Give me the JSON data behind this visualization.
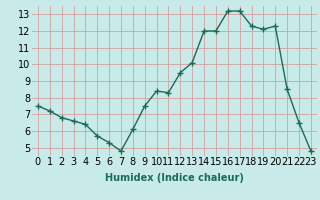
{
  "x": [
    0,
    1,
    2,
    3,
    4,
    5,
    6,
    7,
    8,
    9,
    10,
    11,
    12,
    13,
    14,
    15,
    16,
    17,
    18,
    19,
    20,
    21,
    22,
    23
  ],
  "y": [
    7.5,
    7.2,
    6.8,
    6.6,
    6.4,
    5.7,
    5.3,
    4.8,
    6.1,
    7.5,
    8.4,
    8.3,
    9.5,
    10.1,
    12.0,
    12.0,
    13.2,
    13.2,
    12.3,
    12.1,
    12.3,
    8.5,
    6.5,
    4.8
  ],
  "line_color": "#1a6b5a",
  "marker": "+",
  "marker_size": 4,
  "marker_linewidth": 1.0,
  "bg_color": "#c8eae8",
  "grid_color": "#d4a0a0",
  "xlabel": "Humidex (Indice chaleur)",
  "xlabel_fontsize": 7,
  "tick_fontsize": 7,
  "ylim": [
    4.5,
    13.5
  ],
  "xlim": [
    -0.5,
    23.5
  ],
  "yticks": [
    5,
    6,
    7,
    8,
    9,
    10,
    11,
    12,
    13
  ],
  "xticks": [
    0,
    1,
    2,
    3,
    4,
    5,
    6,
    7,
    8,
    9,
    10,
    11,
    12,
    13,
    14,
    15,
    16,
    17,
    18,
    19,
    20,
    21,
    22,
    23
  ],
  "xtick_labels": [
    "0",
    "1",
    "2",
    "3",
    "4",
    "5",
    "6",
    "7",
    "8",
    "9",
    "10",
    "11",
    "12",
    "13",
    "14",
    "15",
    "16",
    "17",
    "18",
    "19",
    "20",
    "21",
    "22",
    "23"
  ],
  "line_width": 1.0
}
